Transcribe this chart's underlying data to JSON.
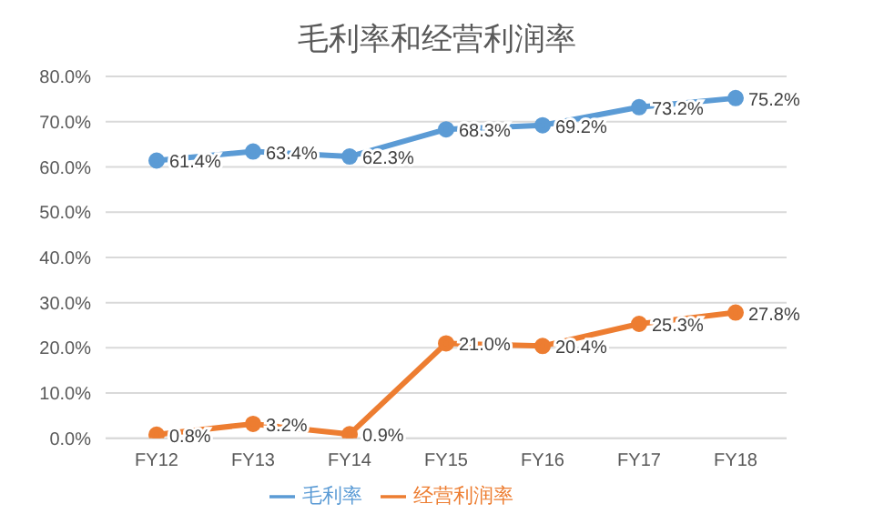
{
  "chart_data": {
    "type": "line",
    "title": "毛利率和经营利润率",
    "categories": [
      "FY12",
      "FY13",
      "FY14",
      "FY15",
      "FY16",
      "FY17",
      "FY18"
    ],
    "series": [
      {
        "name": "毛利率",
        "color": "#5b9bd5",
        "values": [
          61.4,
          63.4,
          62.3,
          68.3,
          69.2,
          73.2,
          75.2
        ],
        "value_labels": [
          "61.4%",
          "63.4%",
          "62.3%",
          "68.3%",
          "69.2%",
          "73.2%",
          "75.2%"
        ]
      },
      {
        "name": "经营利润率",
        "color": "#ed7d31",
        "values": [
          0.8,
          3.2,
          0.9,
          21.0,
          20.4,
          25.3,
          27.8
        ],
        "value_labels": [
          "0.8%",
          "3.2%",
          "0.9%",
          "21.0%",
          "20.4%",
          "25.3%",
          "27.8%"
        ]
      }
    ],
    "ylim": [
      0,
      80
    ],
    "yticks": [
      {
        "value": 0,
        "label": "0.0%"
      },
      {
        "value": 10,
        "label": "10.0%"
      },
      {
        "value": 20,
        "label": "20.0%"
      },
      {
        "value": 30,
        "label": "30.0%"
      },
      {
        "value": 40,
        "label": "40.0%"
      },
      {
        "value": 50,
        "label": "50.0%"
      },
      {
        "value": 60,
        "label": "60.0%"
      },
      {
        "value": 70,
        "label": "70.0%"
      },
      {
        "value": 80,
        "label": "80.0%"
      }
    ],
    "grid": "y",
    "legend": "bottom",
    "marker": "circle",
    "line_style": "solid"
  }
}
